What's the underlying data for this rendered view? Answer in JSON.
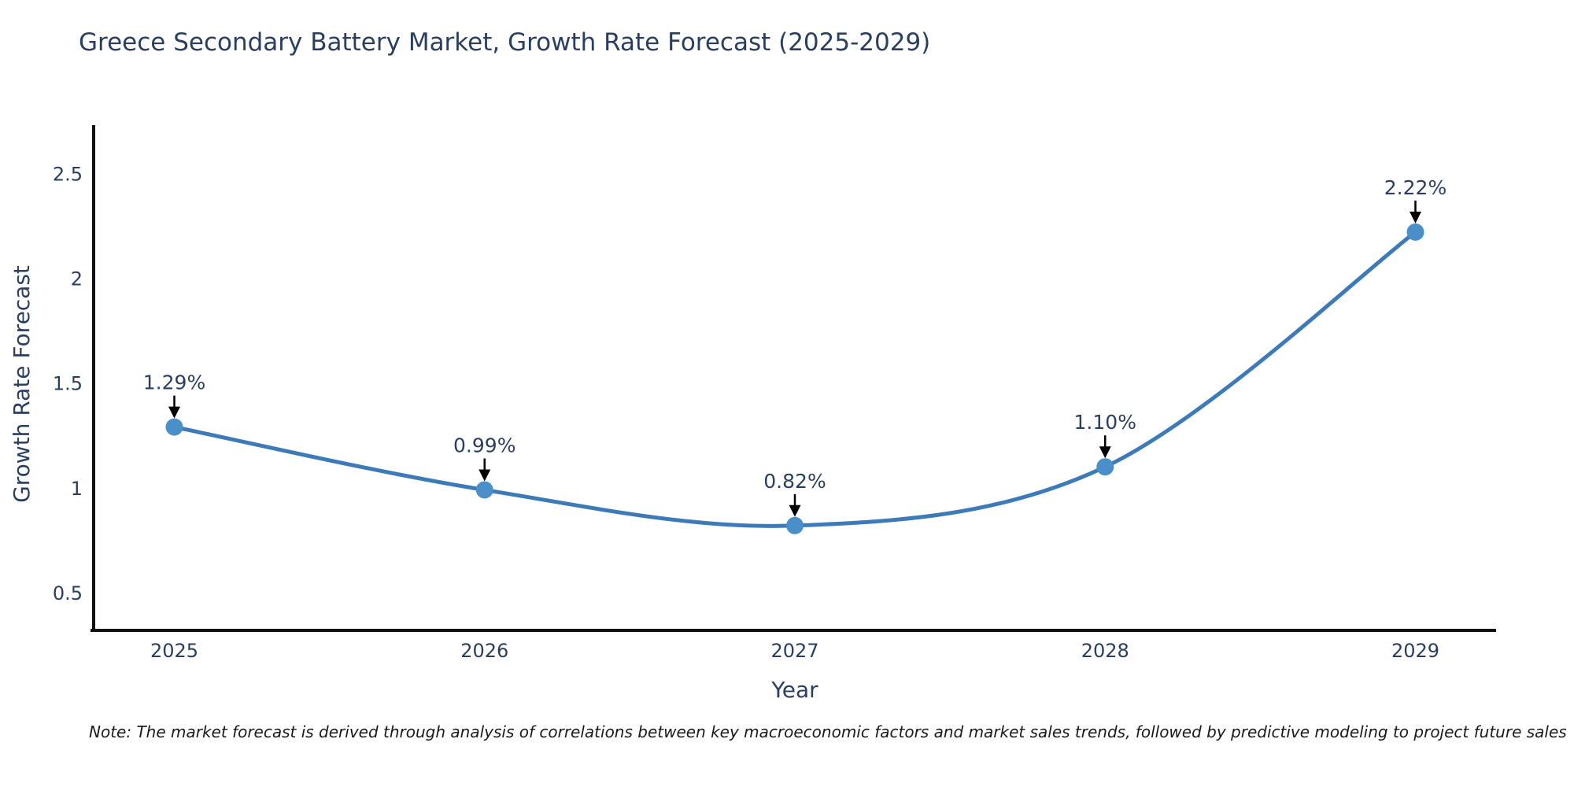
{
  "chart": {
    "title": "Greece Secondary Battery Market, Growth Rate Forecast (2025-2029)",
    "xlabel": "Year",
    "ylabel": "Growth Rate Forecast",
    "note": "Note: The market forecast is derived through analysis of correlations between key macroeconomic factors and market sales trends, followed by predictive modeling to project future sales"
  },
  "chart_data": {
    "type": "line",
    "title": "Greece Secondary Battery Market, Growth Rate Forecast (2025-2029)",
    "xlabel": "Year",
    "ylabel": "Growth Rate Forecast",
    "categories": [
      "2025",
      "2026",
      "2027",
      "2028",
      "2029"
    ],
    "series": [
      {
        "name": "Growth Rate Forecast",
        "values": [
          1.29,
          0.99,
          0.82,
          1.1,
          2.22
        ],
        "point_labels": [
          "1.29%",
          "0.99%",
          "0.82%",
          "1.10%",
          "2.22%"
        ]
      }
    ],
    "y_ticks": [
      {
        "value": 0.5,
        "label": "0.5"
      },
      {
        "value": 1,
        "label": "1"
      },
      {
        "value": 1.5,
        "label": "1.5"
      },
      {
        "value": 2,
        "label": "2"
      },
      {
        "value": 2.5,
        "label": "2.5"
      }
    ],
    "ylim": [
      0.32,
      2.73
    ],
    "grid": false,
    "legend_position": "none",
    "smooth_line": true,
    "colors": {
      "line": "#3d7ab8",
      "marker": "#4a8fc7",
      "axis": "#111111",
      "text": "#2a3f5f",
      "annotation_arrow": "#000000",
      "background": "#ffffff"
    }
  }
}
